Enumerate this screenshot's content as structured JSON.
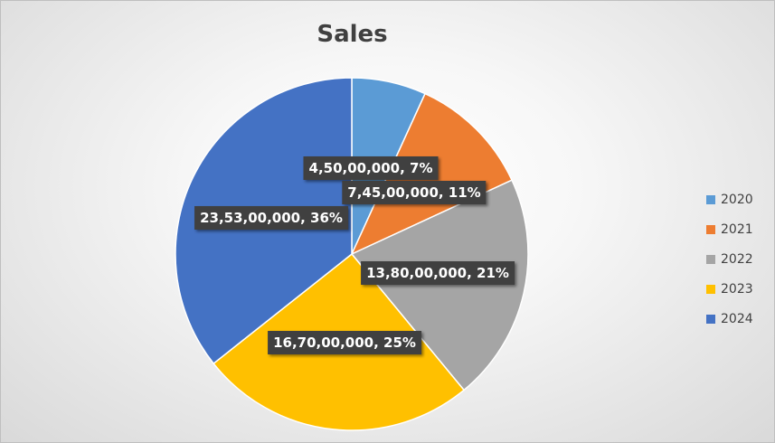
{
  "chart_data": {
    "type": "pie",
    "title": "Sales",
    "categories": [
      "2020",
      "2021",
      "2022",
      "2023",
      "2024"
    ],
    "values": [
      45000000,
      74500000,
      138000000,
      167000000,
      235300000
    ],
    "data_labels": [
      "4,50,00,000, 7%",
      "7,45,00,000, 11%",
      "13,80,00,000, 21%",
      "16,70,00,000, 25%",
      "23,53,00,000, 36%"
    ],
    "colors": [
      "#5b9bd5",
      "#ed7d31",
      "#a5a5a5",
      "#ffc000",
      "#4472c4"
    ],
    "legend_position": "right"
  }
}
